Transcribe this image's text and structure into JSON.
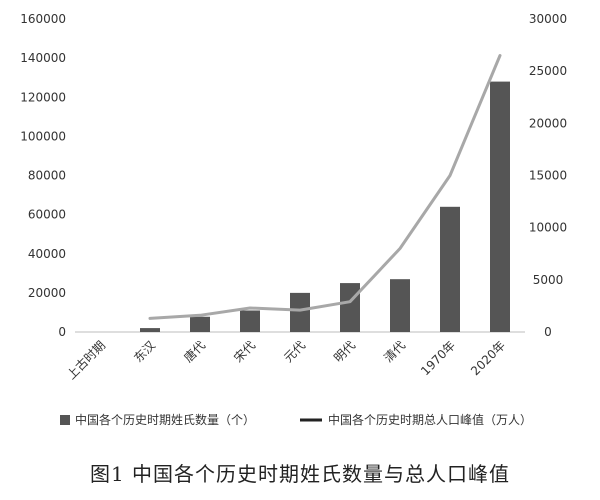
{
  "chart_data": {
    "type": "bar",
    "categories": [
      "上古时期",
      "东汉",
      "唐代",
      "宋代",
      "元代",
      "明代",
      "清代",
      "1970年",
      "2020年"
    ],
    "series": [
      {
        "name": "中国各个历史时期姓氏数量（个）",
        "kind": "bar",
        "axis": "left",
        "color": "#555555",
        "values": [
          0,
          2000,
          7800,
          11000,
          20000,
          25000,
          27000,
          64000,
          128000
        ]
      },
      {
        "name": "中国各个历史时期总人口峰值（万人）",
        "kind": "line",
        "axis": "right",
        "color": "#a8a8a8",
        "values": [
          null,
          1300,
          1600,
          2300,
          2100,
          2900,
          8000,
          15000,
          26500
        ]
      }
    ],
    "y_left": {
      "min": 0,
      "max": 160000,
      "ticks": [
        0,
        20000,
        40000,
        60000,
        80000,
        100000,
        120000,
        140000,
        160000
      ]
    },
    "y_right": {
      "min": 0,
      "max": 30000,
      "ticks": [
        0,
        5000,
        10000,
        15000,
        20000,
        25000,
        30000
      ]
    },
    "grid": false,
    "legend_position": "bottom"
  },
  "caption": "图1 中国各个历史时期姓氏数量与总人口峰值"
}
